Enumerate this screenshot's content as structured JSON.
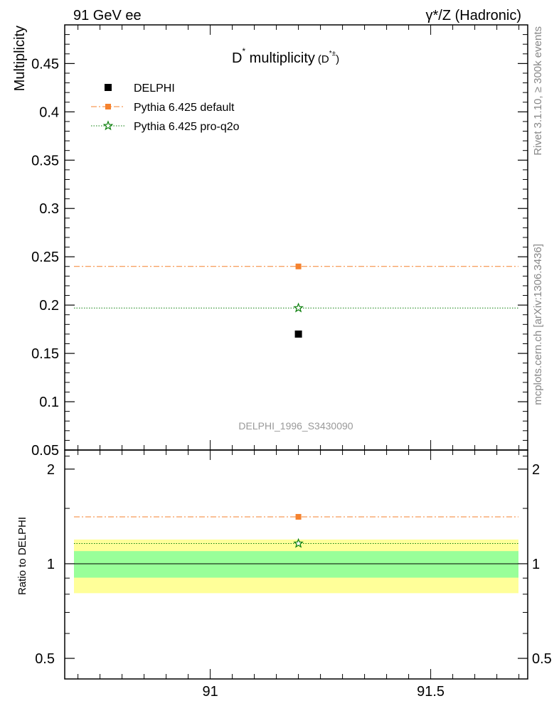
{
  "header": {
    "left": "91 GeV ee",
    "right": "γ*/Z (Hadronic)"
  },
  "side_labels": {
    "top": "Rivet 3.1.10, ≥ 300k events",
    "bottom": "mcplots.cern.ch [arXiv:1306.3436]"
  },
  "chart_data": [
    {
      "panel": "main",
      "type": "scatter",
      "title": "D* multiplicity (D*±)",
      "title_parts": {
        "main": "D",
        "sup": "*",
        "rest": " multiplicity",
        "sub_open": "(D",
        "sub_sup": "*±",
        "sub_close": ")"
      },
      "ylabel": "Multiplicity",
      "watermark": "DELPHI_1996_S3430090",
      "xlim": [
        90.67,
        91.72
      ],
      "ylim": [
        0.05,
        0.49
      ],
      "yticks": [
        0.05,
        0.1,
        0.15,
        0.2,
        0.25,
        0.3,
        0.35,
        0.4,
        0.45
      ],
      "ytick_labels": [
        "0.05",
        "0.1",
        "0.15",
        "0.2",
        "0.25",
        "0.3",
        "0.35",
        "0.4",
        "0.45"
      ],
      "grid": false,
      "legend_position": "top-left",
      "series": [
        {
          "name": "DELPHI",
          "kind": "data",
          "marker": "square",
          "color": "#000000",
          "x": [
            91.2
          ],
          "y": [
            0.17
          ]
        },
        {
          "name": "Pythia 6.425 default",
          "kind": "mc",
          "marker": "square",
          "line": "dash-dot",
          "color": "#f5822e",
          "x": [
            91.2
          ],
          "y": [
            0.24
          ]
        },
        {
          "name": "Pythia 6.425 pro-q2o",
          "kind": "mc",
          "marker": "star",
          "line": "dotted",
          "color": "#0a7e0a",
          "x": [
            91.2
          ],
          "y": [
            0.197
          ]
        }
      ]
    },
    {
      "panel": "ratio",
      "type": "line",
      "ylabel": "Ratio to DELPHI",
      "xlim": [
        90.67,
        91.72
      ],
      "ylim": [
        0.43,
        2.3
      ],
      "xticks": [
        91,
        91.5
      ],
      "xtick_labels": [
        "91",
        "91.5"
      ],
      "yticks": [
        0.5,
        1,
        2
      ],
      "ytick_labels": [
        "0.5",
        "1",
        "2"
      ],
      "bands": [
        {
          "name": "total uncertainty",
          "color": "#ffff99",
          "range": [
            0.806,
            1.194
          ]
        },
        {
          "name": "stat uncertainty",
          "color": "#99ff99",
          "range": [
            0.903,
            1.097
          ]
        }
      ],
      "series": [
        {
          "name": "Pythia 6.425 default",
          "marker": "square",
          "line": "dash-dot",
          "color": "#f5822e",
          "x": [
            91.2
          ],
          "y": [
            1.41
          ]
        },
        {
          "name": "Pythia 6.425 pro-q2o",
          "marker": "star",
          "line": "dotted",
          "color": "#0a7e0a",
          "x": [
            91.2
          ],
          "y": [
            1.16
          ]
        }
      ],
      "reference_line": 1
    }
  ]
}
